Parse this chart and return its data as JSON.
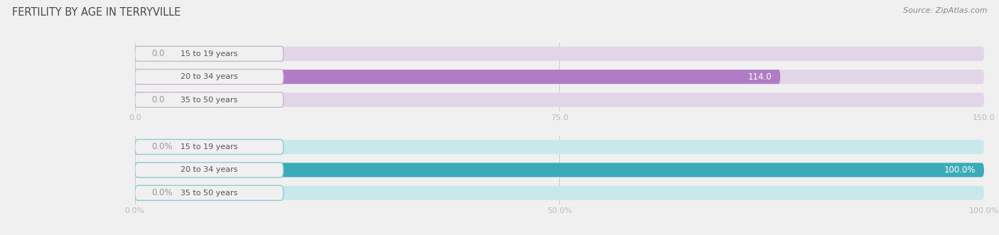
{
  "title": "FERTILITY BY AGE IN TERRYVILLE",
  "source": "Source: ZipAtlas.com",
  "title_color": "#4a4a4a",
  "title_fontsize": 10.5,
  "background_color": "#f0f0f0",
  "top_chart": {
    "categories": [
      "15 to 19 years",
      "20 to 34 years",
      "35 to 50 years"
    ],
    "values": [
      0.0,
      114.0,
      0.0
    ],
    "xlim": [
      0,
      150.0
    ],
    "xticks": [
      0.0,
      75.0,
      150.0
    ],
    "xtick_labels": [
      "0.0",
      "75.0",
      "150.0"
    ],
    "bar_color": "#b07cc6",
    "bar_bg_color": "#e2d5e8",
    "badge_bg_color": "#f0f0f0",
    "badge_border_color": "#c8b8d0",
    "bar_height": 0.62,
    "bar_gap": 0.38
  },
  "bottom_chart": {
    "categories": [
      "15 to 19 years",
      "20 to 34 years",
      "35 to 50 years"
    ],
    "values": [
      0.0,
      100.0,
      0.0
    ],
    "xlim": [
      0,
      100.0
    ],
    "xticks": [
      0.0,
      50.0,
      100.0
    ],
    "xtick_labels": [
      "0.0%",
      "50.0%",
      "100.0%"
    ],
    "bar_color": "#3aacb8",
    "bar_bg_color": "#c8e8ec",
    "badge_bg_color": "#f0f0f0",
    "badge_border_color": "#8eccd2",
    "bar_height": 0.62,
    "bar_gap": 0.38
  }
}
